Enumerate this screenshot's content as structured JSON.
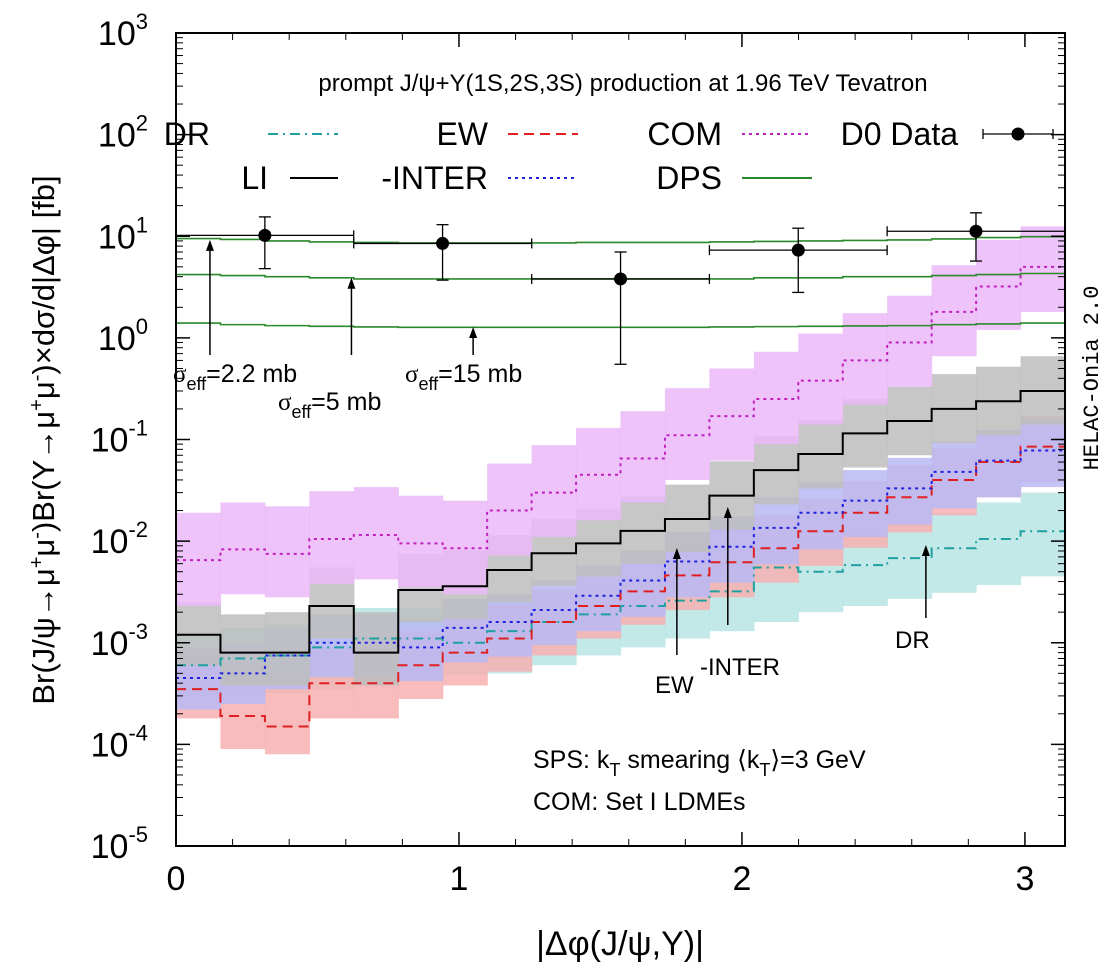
{
  "chart_data": {
    "type": "line",
    "title": "prompt J/ψ+Υ(1S,2S,3S) production at 1.96 TeV Tevatron",
    "xlabel": "|Δφ(J/ψ,Υ)|",
    "ylabel": {
      "pre": "Br(J/ψ→μ",
      "sup1": "+",
      "mid1": "μ",
      "sup2": "-",
      "mid2": ")Br(Υ→μ",
      "sup3": "+",
      "mid3": "μ",
      "sup4": "-",
      "post": ")×dσ/d|Δφ| [fb]"
    },
    "side_label": "HELAC-Onia 2.0",
    "xlim": [
      0,
      3.1416
    ],
    "ylim": [
      1e-05,
      1000
    ],
    "log_y": true,
    "x_ticks": [
      "0",
      "1",
      "2",
      "3"
    ],
    "y_ticks": [
      {
        "base": "10",
        "exp": "-5",
        "value": 1e-05
      },
      {
        "base": "10",
        "exp": "-4",
        "value": 0.0001
      },
      {
        "base": "10",
        "exp": "-3",
        "value": 0.001
      },
      {
        "base": "10",
        "exp": "-2",
        "value": 0.01
      },
      {
        "base": "10",
        "exp": "-1",
        "value": 0.1
      },
      {
        "base": "10",
        "exp": "0",
        "value": 1
      },
      {
        "base": "10",
        "exp": "1",
        "value": 10
      },
      {
        "base": "10",
        "exp": "2",
        "value": 100
      },
      {
        "base": "10",
        "exp": "3",
        "value": 1000
      }
    ],
    "bins": 20,
    "legend": {
      "placement": "top",
      "entries": [
        {
          "key": "DR",
          "label": "DR"
        },
        {
          "key": "EW",
          "label": "EW"
        },
        {
          "key": "COM",
          "label": "COM"
        },
        {
          "key": "D0",
          "label": "D0 Data"
        },
        {
          "key": "LI",
          "label": "LI"
        },
        {
          "key": "INTER",
          "label": "-INTER"
        },
        {
          "key": "DPS",
          "label": "DPS"
        }
      ]
    },
    "series": [
      {
        "key": "DR",
        "name": "DR",
        "color": "#20a0a0",
        "dash": "dashdot",
        "band_color": "#b8e4e4",
        "values": [
          0.0006,
          0.0007,
          0.00075,
          0.0009,
          0.0011,
          0.0011,
          0.001,
          0.0013,
          0.0016,
          0.0019,
          0.0023,
          0.0026,
          0.0032,
          0.0055,
          0.005,
          0.0058,
          0.0068,
          0.0085,
          0.0105,
          0.0125
        ],
        "band_lo": [
          0.00028,
          0.0003,
          0.00032,
          0.00035,
          0.0004,
          0.00045,
          0.00048,
          0.0005,
          0.0006,
          0.00075,
          0.0009,
          0.0011,
          0.0013,
          0.0016,
          0.002,
          0.0023,
          0.0027,
          0.0031,
          0.0037,
          0.0045
        ],
        "band_hi": [
          0.0012,
          0.0014,
          0.0015,
          0.0018,
          0.0022,
          0.0022,
          0.0021,
          0.0027,
          0.0032,
          0.0038,
          0.0048,
          0.0055,
          0.0068,
          0.012,
          0.011,
          0.0125,
          0.015,
          0.019,
          0.024,
          0.03
        ]
      },
      {
        "key": "EW",
        "name": "EW",
        "color": "#e02020",
        "dash": "dashed",
        "band_color": "#f8b0b0",
        "values": [
          0.00035,
          0.00019,
          0.00015,
          0.0004,
          0.0004,
          0.0006,
          0.0008,
          0.0011,
          0.0016,
          0.0023,
          0.0032,
          0.0046,
          0.0062,
          0.0085,
          0.0125,
          0.019,
          0.027,
          0.04,
          0.06,
          0.085
        ],
        "band_lo": [
          0.00018,
          9e-05,
          8e-05,
          0.00018,
          0.00018,
          0.00028,
          0.00038,
          0.00052,
          0.00075,
          0.0011,
          0.0015,
          0.0021,
          0.0028,
          0.0039,
          0.0057,
          0.0086,
          0.0122,
          0.018,
          0.027,
          0.038
        ],
        "band_hi": [
          0.0008,
          0.0006,
          0.0005,
          0.0009,
          0.0009,
          0.0013,
          0.0017,
          0.0024,
          0.0034,
          0.0049,
          0.0068,
          0.0097,
          0.013,
          0.018,
          0.026,
          0.039,
          0.056,
          0.082,
          0.122,
          0.17
        ]
      },
      {
        "key": "INTER",
        "name": "-INTER",
        "color": "#2020e0",
        "dash": "dotted",
        "band_color": "#b8b8f4",
        "values": [
          0.00045,
          0.0005,
          0.00075,
          0.001,
          0.001,
          0.0009,
          0.0014,
          0.0016,
          0.0021,
          0.0029,
          0.0041,
          0.0063,
          0.0088,
          0.0135,
          0.019,
          0.025,
          0.033,
          0.048,
          0.062,
          0.078
        ],
        "band_lo": [
          0.00022,
          0.00025,
          0.00035,
          0.00046,
          0.00046,
          0.00042,
          0.00064,
          0.00073,
          0.00095,
          0.0013,
          0.0018,
          0.0028,
          0.0039,
          0.0059,
          0.0083,
          0.011,
          0.0145,
          0.021,
          0.027,
          0.034
        ],
        "band_hi": [
          0.0009,
          0.001,
          0.0014,
          0.0019,
          0.0019,
          0.0017,
          0.0027,
          0.003,
          0.0041,
          0.0058,
          0.0081,
          0.0124,
          0.0175,
          0.027,
          0.038,
          0.05,
          0.066,
          0.095,
          0.124,
          0.16
        ]
      },
      {
        "key": "LI",
        "name": "LI",
        "color": "#000000",
        "dash": "solid",
        "band_color": "#bdbdbd",
        "values": [
          0.0012,
          0.0008,
          0.0008,
          0.0023,
          0.0008,
          0.0033,
          0.0036,
          0.0052,
          0.0076,
          0.0095,
          0.0126,
          0.0165,
          0.028,
          0.05,
          0.072,
          0.115,
          0.152,
          0.2,
          0.238,
          0.3
        ],
        "band_lo": [
          0.0006,
          0.00038,
          0.00038,
          0.0011,
          0.00038,
          0.0016,
          0.0017,
          0.0025,
          0.0036,
          0.0045,
          0.006,
          0.0078,
          0.013,
          0.023,
          0.033,
          0.053,
          0.07,
          0.092,
          0.11,
          0.14
        ],
        "band_hi": [
          0.0025,
          0.0019,
          0.002,
          0.0055,
          0.002,
          0.0075,
          0.0081,
          0.0115,
          0.0166,
          0.0208,
          0.0276,
          0.036,
          0.061,
          0.109,
          0.157,
          0.25,
          0.33,
          0.44,
          0.52,
          0.66
        ]
      },
      {
        "key": "COM",
        "name": "COM",
        "color": "#c020c0",
        "dash": "dotted",
        "band_color": "#eab8f8",
        "values": [
          0.0065,
          0.0083,
          0.0075,
          0.0105,
          0.0115,
          0.0095,
          0.0085,
          0.02,
          0.03,
          0.045,
          0.065,
          0.11,
          0.17,
          0.25,
          0.38,
          0.6,
          0.9,
          1.8,
          3.2,
          5.0
        ],
        "band_lo": [
          0.0023,
          0.003,
          0.0028,
          0.0038,
          0.0042,
          0.0035,
          0.003,
          0.0072,
          0.011,
          0.016,
          0.024,
          0.04,
          0.062,
          0.09,
          0.14,
          0.22,
          0.33,
          0.66,
          1.2,
          1.8
        ],
        "band_hi": [
          0.019,
          0.024,
          0.022,
          0.031,
          0.034,
          0.028,
          0.025,
          0.058,
          0.088,
          0.13,
          0.19,
          0.32,
          0.5,
          0.73,
          1.1,
          1.75,
          2.6,
          5.2,
          9.2,
          12.5
        ]
      },
      {
        "key": "DPS",
        "name": "DPS",
        "color": "#2a8a2a",
        "dash": "solid",
        "curves": [
          {
            "label": "σeff=2.2 mb",
            "values": [
              9.5,
              9.3,
              9.0,
              8.8,
              8.7,
              8.6,
              8.6,
              8.6,
              8.6,
              8.7,
              8.7,
              8.7,
              8.8,
              8.9,
              9.0,
              9.1,
              9.2,
              9.4,
              9.7,
              9.9
            ]
          },
          {
            "label": "σeff=5 mb",
            "values": [
              4.2,
              4.1,
              4.0,
              3.9,
              3.8,
              3.8,
              3.8,
              3.8,
              3.8,
              3.8,
              3.8,
              3.8,
              3.8,
              3.9,
              3.9,
              4.0,
              4.0,
              4.1,
              4.2,
              4.3
            ]
          },
          {
            "label": "σeff=15 mb",
            "values": [
              1.4,
              1.35,
              1.32,
              1.3,
              1.28,
              1.27,
              1.27,
              1.27,
              1.27,
              1.27,
              1.27,
              1.27,
              1.28,
              1.29,
              1.3,
              1.31,
              1.32,
              1.35,
              1.37,
              1.4
            ]
          }
        ]
      }
    ],
    "d0_data": {
      "name": "D0 Data",
      "points": [
        {
          "x": 0.314,
          "xlo": 0.0,
          "xhi": 0.628,
          "y": 10.2,
          "ylo": 4.8,
          "yhi": 15.5
        },
        {
          "x": 0.942,
          "xlo": 0.628,
          "xhi": 1.257,
          "y": 8.5,
          "ylo": 3.7,
          "yhi": 13.0
        },
        {
          "x": 1.571,
          "xlo": 1.257,
          "xhi": 1.885,
          "y": 3.8,
          "ylo": 0.55,
          "yhi": 7.0
        },
        {
          "x": 2.199,
          "xlo": 1.885,
          "xhi": 2.513,
          "y": 7.3,
          "ylo": 2.8,
          "yhi": 12.0
        },
        {
          "x": 2.827,
          "xlo": 2.513,
          "xhi": 3.1416,
          "y": 11.2,
          "ylo": 5.7,
          "yhi": 17.0
        }
      ]
    },
    "annotations": [
      {
        "name": "annot-sigma-2.2",
        "base": "σ",
        "sub": "eff",
        "tail": "=2.2 mb"
      },
      {
        "name": "annot-sigma-5",
        "base": "σ",
        "sub": "eff",
        "tail": "=5 mb"
      },
      {
        "name": "annot-sigma-15",
        "base": "σ",
        "sub": "eff",
        "tail": "=15 mb"
      },
      {
        "name": "annot-ew",
        "text": "EW"
      },
      {
        "name": "annot-inter",
        "text": "-INTER"
      },
      {
        "name": "annot-dr",
        "text": "DR"
      }
    ],
    "info": {
      "line1_pre": "SPS: k",
      "line1_sub": "T",
      "line1_mid": " smearing ⟨k",
      "line1_sub2": "T",
      "line1_post": "⟩=3 GeV",
      "line2": "COM: Set I LDMEs"
    }
  }
}
